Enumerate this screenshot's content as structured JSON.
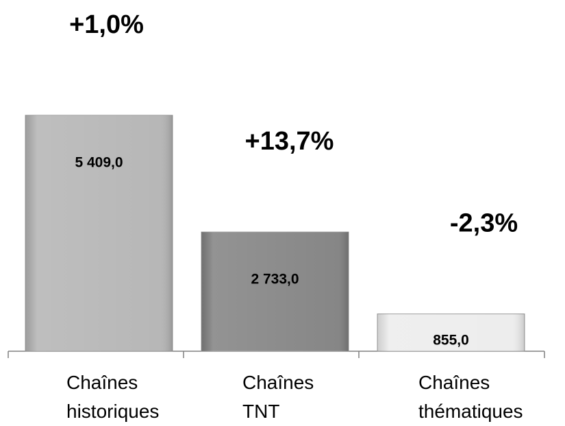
{
  "chart_data": {
    "type": "bar",
    "categories": [
      "Chaînes historiques",
      "Chaînes TNT",
      "Chaînes thématiques"
    ],
    "values": [
      5409.0,
      2733.0,
      855.0
    ],
    "value_labels": [
      "5 409,0",
      "2 733,0",
      "855,0"
    ],
    "annotations": [
      "+1,0%",
      "+13,7%",
      "-2,3%"
    ],
    "colors": [
      "#b3b3b3",
      "#808080",
      "#ececec"
    ]
  }
}
